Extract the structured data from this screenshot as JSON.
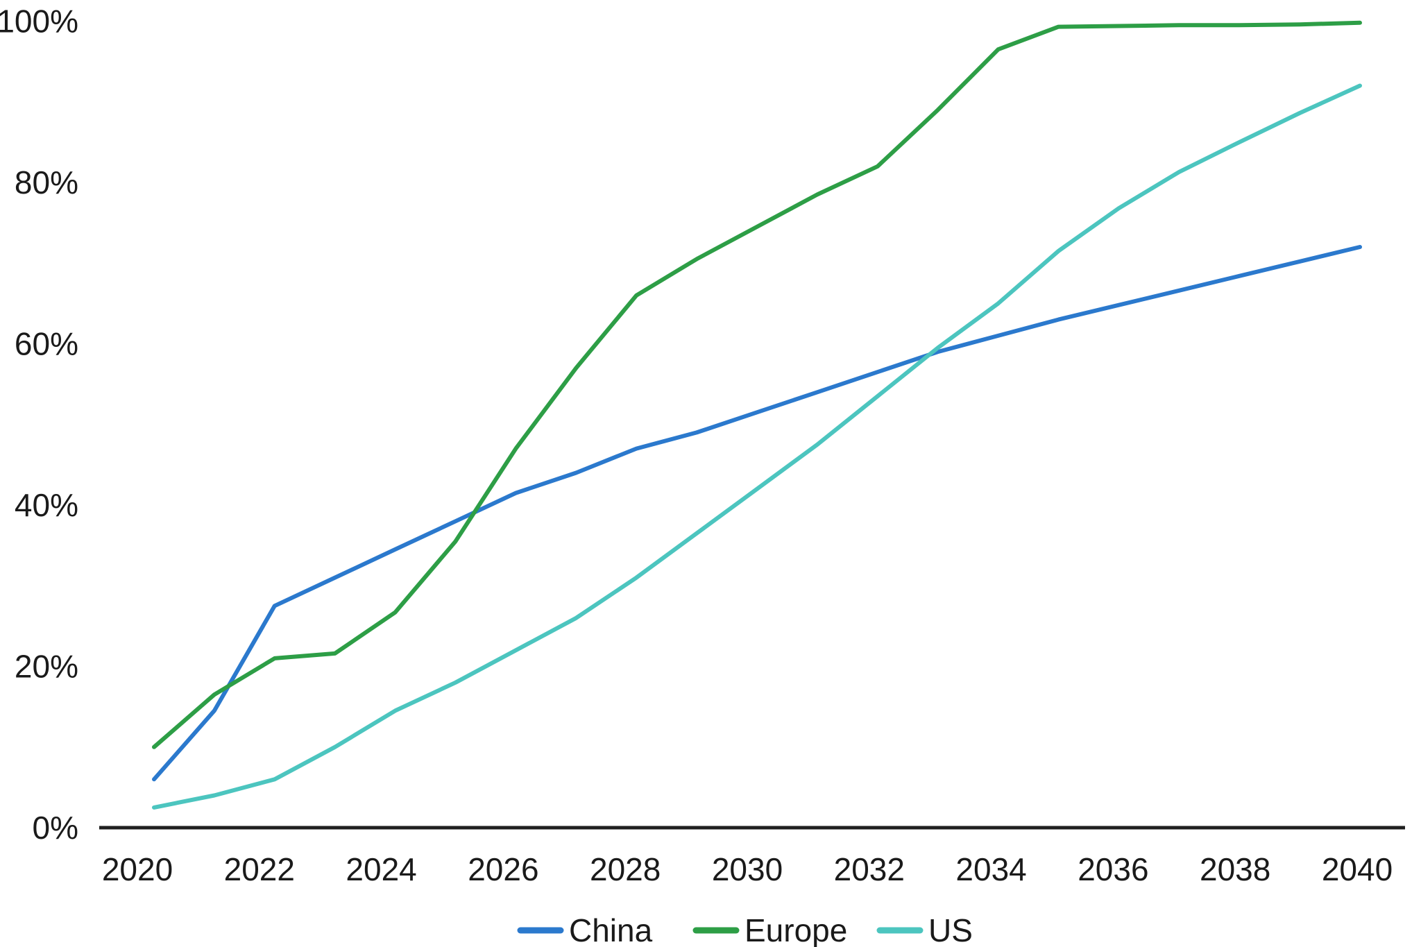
{
  "chart_data": {
    "type": "line",
    "title": "",
    "xlabel": "",
    "ylabel": "",
    "xlim": [
      2020,
      2040
    ],
    "ylim": [
      0,
      100
    ],
    "grid": false,
    "legend_position": "bottom-center",
    "background_color": "#ffffff",
    "axis_color": "#1f1f1f",
    "text_color": "#1a1a1a",
    "x": [
      2020,
      2021,
      2022,
      2023,
      2024,
      2025,
      2026,
      2027,
      2028,
      2029,
      2030,
      2031,
      2032,
      2033,
      2034,
      2035,
      2036,
      2037,
      2038,
      2039,
      2040
    ],
    "x_tick_labels": [
      "2020",
      "2022",
      "2024",
      "2026",
      "2028",
      "2030",
      "2032",
      "2034",
      "2036",
      "2038",
      "2040"
    ],
    "y_tick_values": [
      0,
      20,
      40,
      60,
      80,
      100
    ],
    "y_tick_labels": [
      "0%",
      "20%",
      "40%",
      "60%",
      "80%",
      "100%"
    ],
    "series": [
      {
        "name": "China",
        "color": "#2b79cd",
        "values": [
          6,
          14.5,
          27.5,
          31,
          34.5,
          38,
          41.5,
          44,
          47,
          49,
          51.5,
          54,
          56.5,
          59,
          61,
          63,
          64.8,
          66.6,
          68.4,
          70.2,
          72
        ]
      },
      {
        "name": "Europe",
        "color": "#2d9e46",
        "values": [
          10,
          16.5,
          21,
          21.6,
          26.7,
          35.5,
          47,
          57,
          66,
          70.5,
          74.5,
          78.5,
          82,
          89,
          96.5,
          99.3,
          99.4,
          99.5,
          99.5,
          99.6,
          99.8
        ]
      },
      {
        "name": "US",
        "color": "#4cc5bf",
        "values": [
          2.5,
          4,
          6,
          10,
          14.5,
          18,
          22,
          26,
          31,
          36.5,
          42,
          47.5,
          53.5,
          59.5,
          65,
          71.5,
          76.8,
          81.3,
          85,
          88.6,
          92
        ]
      }
    ]
  }
}
